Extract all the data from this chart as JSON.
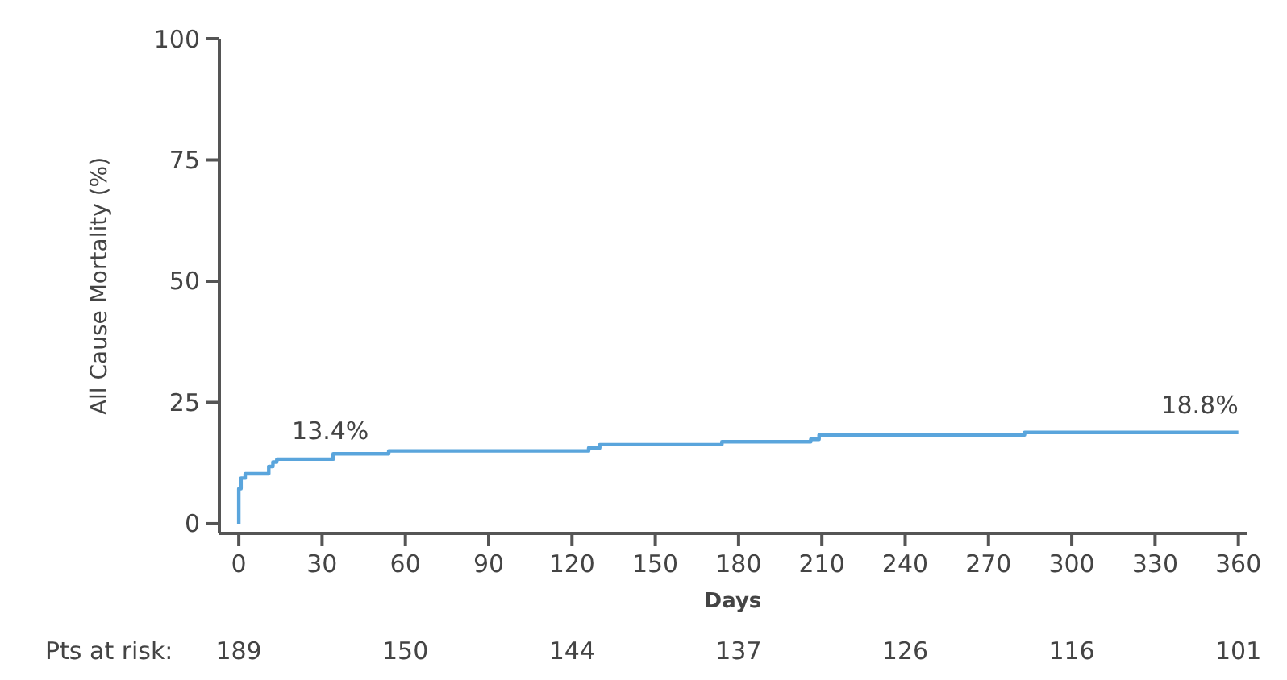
{
  "chart_data": {
    "type": "step",
    "xlabel": "Days",
    "ylabel": "All Cause Mortality (%)",
    "series": [
      {
        "color": "#5aa5dc",
        "x": [
          0,
          0,
          0.8,
          2.3,
          10.8,
          12.3,
          13.7,
          34,
          54,
          126,
          130,
          174,
          206,
          209,
          283,
          360
        ],
        "values": [
          0,
          7.2,
          9.4,
          10.3,
          11.8,
          12.7,
          13.3,
          14.4,
          15.0,
          15.6,
          16.3,
          16.9,
          17.4,
          18.3,
          18.8,
          18.8
        ]
      }
    ],
    "xlim": [
      -7,
      363
    ],
    "xticks": [
      0,
      30,
      60,
      90,
      120,
      150,
      180,
      210,
      240,
      270,
      300,
      330,
      360
    ],
    "ylim": [
      -2,
      100
    ],
    "yticks": [
      0,
      25,
      50,
      75,
      100
    ],
    "grid": false,
    "marker": "none",
    "line_style": "solid",
    "annotations": [
      {
        "text": "13.4%",
        "x": 33,
        "y": 13.4
      },
      {
        "text": "18.8%",
        "x": 360,
        "y": 18.8
      },
      "Pts at risk:",
      "189",
      "150",
      "144",
      "137",
      "126",
      "116",
      "101"
    ]
  }
}
